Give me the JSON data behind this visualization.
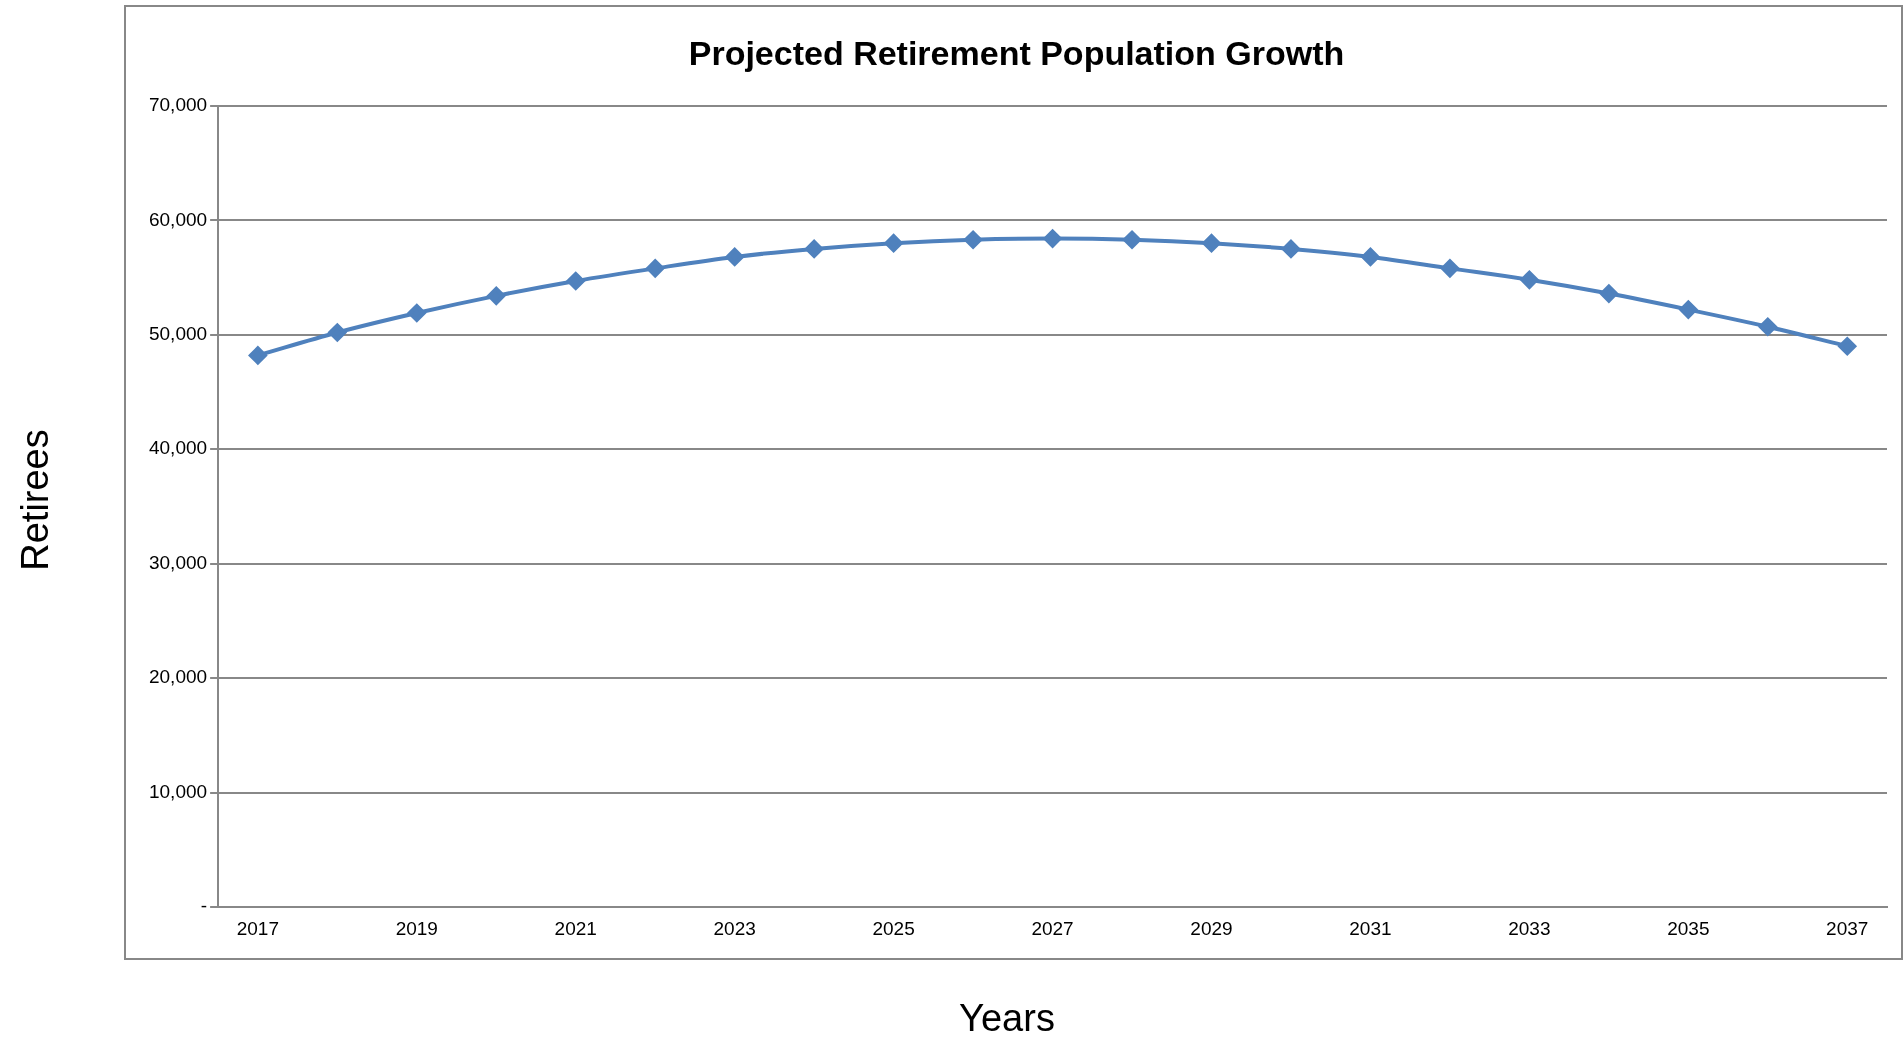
{
  "chart_data": {
    "type": "line",
    "title": "Projected Retirement Population Growth",
    "xlabel": "Years",
    "ylabel": "Retirees",
    "categories": [
      "2017",
      null,
      "2019",
      null,
      "2021",
      null,
      "2023",
      null,
      "2025",
      null,
      "2027",
      null,
      "2029",
      null,
      "2031",
      null,
      "2033",
      null,
      "2035",
      null,
      "2037"
    ],
    "series": [
      {
        "color": "#4f81bd",
        "values": [
          48200,
          50200,
          51900,
          53400,
          54700,
          55800,
          56800,
          57500,
          58000,
          58300,
          58400,
          58300,
          58000,
          57500,
          56800,
          55800,
          54800,
          53600,
          52200,
          50700,
          49000
        ]
      }
    ],
    "ylim": [
      0,
      70000
    ],
    "yticks": [
      {
        "value": 0,
        "label": "-"
      },
      {
        "value": 10000,
        "label": "10,000"
      },
      {
        "value": 20000,
        "label": "20,000"
      },
      {
        "value": 30000,
        "label": "30,000"
      },
      {
        "value": 40000,
        "label": "40,000"
      },
      {
        "value": 50000,
        "label": "50,000"
      },
      {
        "value": 60000,
        "label": "60,000"
      },
      {
        "value": 70000,
        "label": "70,000"
      }
    ],
    "grid": "y",
    "marker": "diamond",
    "line_style": "solid"
  }
}
